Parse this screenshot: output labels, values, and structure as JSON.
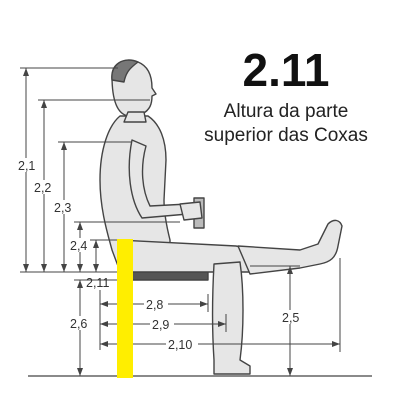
{
  "header": {
    "code": "2.11",
    "caption_line1": "Altura da parte",
    "caption_line2": "superior das Coxas"
  },
  "dimension_labels": {
    "d21": "2,1",
    "d22": "2,2",
    "d23": "2,3",
    "d24": "2,4",
    "d211": "2,11",
    "d26": "2,6",
    "d28": "2,8",
    "d29": "2,9",
    "d210": "2,10",
    "d25": "2,5"
  },
  "colors": {
    "highlight": "#ffee00",
    "figure_line": "#444444",
    "figure_fill": "#e6e6e6",
    "dark_shading": "#555555"
  }
}
